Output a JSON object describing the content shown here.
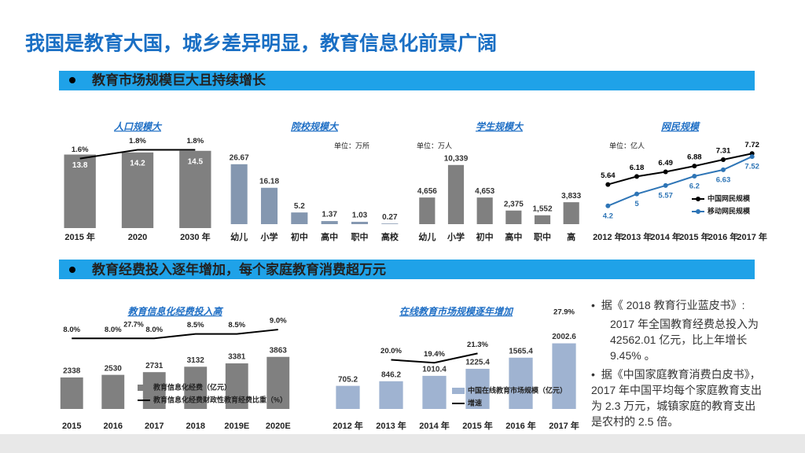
{
  "header": {
    "title": "我国是教育大国，城乡差异明显，教育信息化前景广阔"
  },
  "sections": [
    "教育市场规模巨大且持续增长",
    "教育经费投入逐年增加，每个家庭教育消费超万元"
  ],
  "bullets": [
    {
      "text": "据《 2018 教育行业蓝皮书》:",
      "detail": "2017 年全国教育经费总投入为 42562.01 亿元，比上年增长 9.45% 。"
    },
    {
      "text": "据《中国家庭教育消费白皮书》，2017 年中国平均每个家庭教育支出为 2.3 万元，城镇家庭的教育支出是农村的 2.5 倍。"
    }
  ],
  "chart_data": [
    {
      "type": "bar",
      "title": "人口规模大",
      "categories": [
        "2015 年",
        "2020",
        "2030 年"
      ],
      "ylim": [
        0,
        15.5
      ],
      "y2lim": [
        0,
        1.9
      ],
      "series": [
        {
          "type": "bar",
          "color": "#808080",
          "values": [
            13.8,
            14.2,
            14.5
          ]
        },
        {
          "type": "line",
          "axis": "y2",
          "color": "#000000",
          "values": [
            1.6,
            1.8,
            1.8
          ],
          "value_labels": [
            "1.6%",
            "1.8%",
            "1.8%"
          ]
        }
      ]
    },
    {
      "type": "bar",
      "title": "院校规模大",
      "unit": "单位：万所",
      "categories": [
        "幼儿",
        "小学",
        "初中",
        "高中",
        "职中",
        "高校"
      ],
      "ylim": [
        0,
        28
      ],
      "series": [
        {
          "type": "bar",
          "color": "#8497b0",
          "values": [
            26.67,
            16.18,
            5.2,
            1.37,
            1.03,
            0.27
          ]
        }
      ]
    },
    {
      "type": "bar",
      "title": "学生规模大",
      "unit": "单位：万人",
      "categories": [
        "幼儿",
        "小学",
        "初中",
        "高中",
        "职中",
        "高"
      ],
      "ylim": [
        0,
        11000
      ],
      "series": [
        {
          "type": "bar",
          "color": "#808080",
          "values": [
            4656,
            10339,
            4653,
            2375,
            1552,
            3833
          ],
          "value_labels": [
            "4,656",
            "10,339",
            "4,653",
            "2,375",
            "1,552",
            "3,833"
          ]
        }
      ]
    },
    {
      "type": "line",
      "title": "网民规模",
      "unit": "单位：亿人",
      "categories": [
        "2012 年",
        "2013 年",
        "2014 年",
        "2015 年",
        "2016 年",
        "2017 年"
      ],
      "ylim": [
        3.5,
        8
      ],
      "series": [
        {
          "type": "line",
          "name": "中国网民规模",
          "color": "#000000",
          "values": [
            5.64,
            6.18,
            6.49,
            6.88,
            7.31,
            7.72
          ]
        },
        {
          "type": "line",
          "name": "移动网民规模",
          "color": "#2e75b6",
          "values": [
            4.2,
            5,
            5.57,
            6.2,
            6.63,
            7.52
          ]
        }
      ]
    },
    {
      "type": "bar",
      "title": "教育信息化经费投入高",
      "annotation": "27.7%",
      "categories": [
        "2015",
        "2016",
        "2017",
        "2018",
        "2019E",
        "2020E"
      ],
      "ylim": [
        0,
        7000
      ],
      "y2lim": [
        0,
        10.7
      ],
      "series": [
        {
          "type": "bar",
          "name": "教育信息化经费（亿元）",
          "color": "#808080",
          "values": [
            2338,
            2530,
            2731,
            3132,
            3381,
            3863
          ]
        },
        {
          "type": "line",
          "axis": "y2",
          "name": "教育信息化经费财政性教育经费比重（%）",
          "color": "#000000",
          "values": [
            8.0,
            8.0,
            8.0,
            8.5,
            8.5,
            9.0
          ],
          "value_labels": [
            "8.0%",
            "8.0%",
            "8.0%",
            "8.5%",
            "8.5%",
            "9.0%"
          ]
        }
      ]
    },
    {
      "type": "bar",
      "title": "在线教育市场规模逐年增加",
      "categories": [
        "2012 年",
        "2013 年",
        "2014 年",
        "2015 年",
        "2016 年",
        "2017 年"
      ],
      "ylim": [
        0,
        3000
      ],
      "y2lim": [
        10,
        30
      ],
      "series": [
        {
          "type": "bar",
          "name": "中国在线教育市场规模（亿元）",
          "color": "#9fb3d1",
          "values": [
            705.2,
            846.2,
            1010.4,
            1225.4,
            1565.4,
            2002.6
          ]
        },
        {
          "type": "line",
          "axis": "y2",
          "name": "增速",
          "color": "#000000",
          "values": [
            null,
            20.0,
            19.4,
            21.3,
            null,
            27.9
          ],
          "value_labels": [
            null,
            "20.0%",
            "19.4%",
            "21.3%",
            null,
            "27.9%"
          ]
        }
      ]
    }
  ]
}
